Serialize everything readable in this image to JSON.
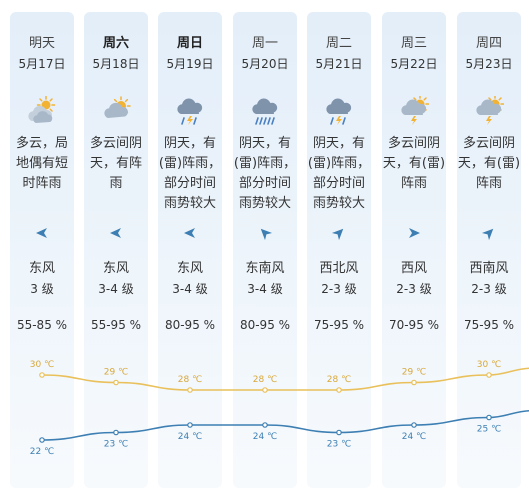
{
  "days": [
    {
      "day": "明天",
      "date": "5月17日",
      "bold": false,
      "weather": "多云，局地偶有短时阵雨",
      "icon": "partly-cloudy-icon",
      "wind_dir": "东风",
      "wind_level": "3 级",
      "humidity": "55-85 %",
      "wind_icon": "wind-arrow-icon"
    },
    {
      "day": "周六",
      "date": "5月18日",
      "bold": true,
      "weather": "多云间阴天，有阵雨",
      "icon": "sun-behind-cloud-icon",
      "wind_dir": "东风",
      "wind_level": "3-4 级",
      "humidity": "55-95 %",
      "wind_icon": "wind-arrow-icon"
    },
    {
      "day": "周日",
      "date": "5月19日",
      "bold": true,
      "weather": "阴天，有(雷)阵雨，部分时间雨势较大",
      "icon": "thunderstorm-icon",
      "wind_dir": "东风",
      "wind_level": "3-4 级",
      "humidity": "80-95 %",
      "wind_icon": "wind-arrow-icon"
    },
    {
      "day": "周一",
      "date": "5月20日",
      "bold": false,
      "weather": "阴天，有(雷)阵雨，部分时间雨势较大",
      "icon": "heavy-rain-icon",
      "wind_dir": "东南风",
      "wind_level": "3-4 级",
      "humidity": "80-95 %",
      "wind_icon": "wind-arrow-icon"
    },
    {
      "day": "周二",
      "date": "5月21日",
      "bold": false,
      "weather": "阴天，有(雷)阵雨，部分时间雨势较大",
      "icon": "thunderstorm-icon",
      "wind_dir": "西北风",
      "wind_level": "2-3 级",
      "humidity": "75-95 %",
      "wind_icon": "wind-arrow-icon"
    },
    {
      "day": "周三",
      "date": "5月22日",
      "bold": false,
      "weather": "多云间阴天，有(雷)阵雨",
      "icon": "sun-thunder-icon",
      "wind_dir": "西风",
      "wind_level": "2-3 级",
      "humidity": "70-95 %",
      "wind_icon": "wind-arrow-icon"
    },
    {
      "day": "周四",
      "date": "5月23日",
      "bold": false,
      "weather": "多云间阴天，有(雷)阵雨",
      "icon": "sun-thunder-icon",
      "wind_dir": "西南风",
      "wind_level": "2-3 级",
      "humidity": "75-95 %",
      "wind_icon": "wind-arrow-icon"
    }
  ],
  "colors": {
    "high_line": "#e9c05a",
    "low_line": "#3d7fb3",
    "cloud": "#a9b8c9",
    "sun": "#f2b233",
    "rain": "#4a80c0"
  },
  "chart_data": {
    "type": "line",
    "categories": [
      "5月17日",
      "5月18日",
      "5月19日",
      "5月20日",
      "5月21日",
      "5月22日",
      "5月23日"
    ],
    "series": [
      {
        "values": [
          30,
          29,
          28,
          28,
          28,
          29,
          30
        ],
        "labels": [
          "30 ℃",
          "29 ℃",
          "28 ℃",
          "28 ℃",
          "28 ℃",
          "29 ℃",
          "30 ℃"
        ]
      },
      {
        "values": [
          22,
          23,
          24,
          24,
          23,
          24,
          25
        ],
        "labels": [
          "22 ℃",
          "23 ℃",
          "24 ℃",
          "24 ℃",
          "23 ℃",
          "24 ℃",
          "25 ℃"
        ]
      }
    ]
  }
}
